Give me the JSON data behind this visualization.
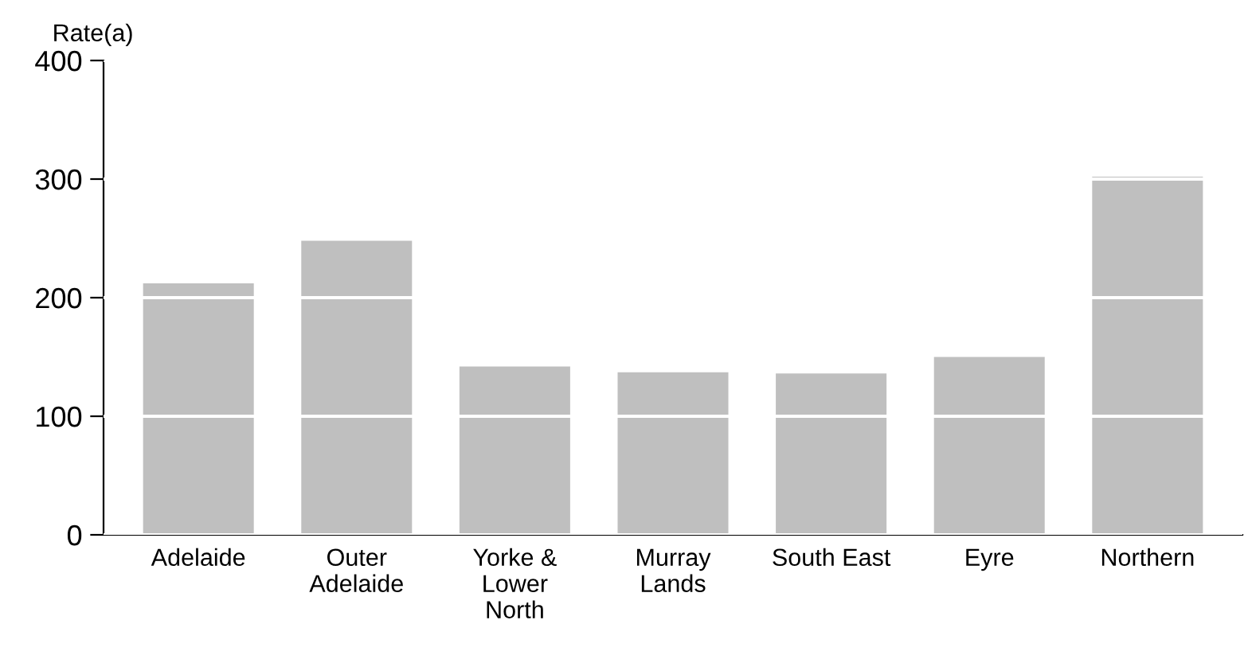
{
  "chart_data": {
    "type": "bar",
    "ylabel": "Rate(a)",
    "categories": [
      "Adelaide",
      "Outer\nAdelaide",
      "Yorke &\nLower\nNorth",
      "Murray\nLands",
      "South East",
      "Eyre",
      "Northern"
    ],
    "values": [
      212,
      248,
      142,
      137,
      136,
      150,
      302
    ],
    "color": "#bfbfbf",
    "ylim": [
      0,
      400
    ],
    "yticks": [
      0,
      100,
      200,
      300,
      400
    ],
    "grid": "y"
  }
}
